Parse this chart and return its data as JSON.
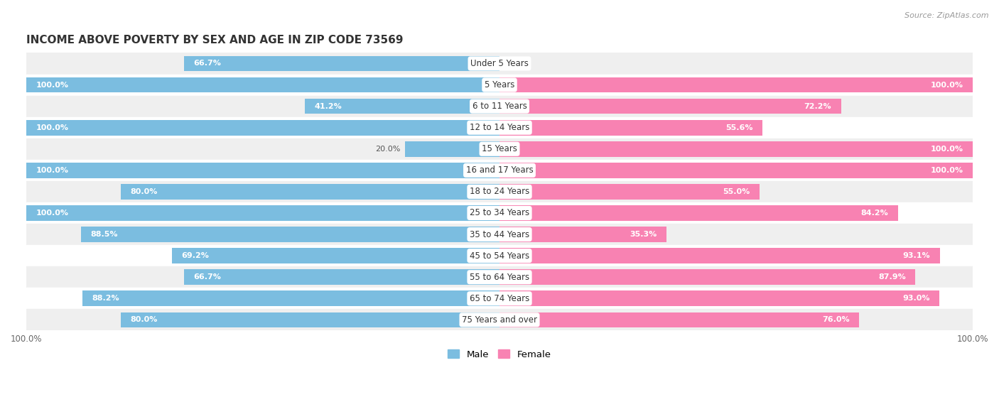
{
  "title": "INCOME ABOVE POVERTY BY SEX AND AGE IN ZIP CODE 73569",
  "source": "Source: ZipAtlas.com",
  "categories": [
    "Under 5 Years",
    "5 Years",
    "6 to 11 Years",
    "12 to 14 Years",
    "15 Years",
    "16 and 17 Years",
    "18 to 24 Years",
    "25 to 34 Years",
    "35 to 44 Years",
    "45 to 54 Years",
    "55 to 64 Years",
    "65 to 74 Years",
    "75 Years and over"
  ],
  "male_values": [
    66.7,
    100.0,
    41.2,
    100.0,
    20.0,
    100.0,
    80.0,
    100.0,
    88.5,
    69.2,
    66.7,
    88.2,
    80.0
  ],
  "female_values": [
    0.0,
    100.0,
    72.2,
    55.6,
    100.0,
    100.0,
    55.0,
    84.2,
    35.3,
    93.1,
    87.9,
    93.0,
    76.0
  ],
  "male_color": "#7bbde0",
  "female_color": "#f882b2",
  "male_label": "Male",
  "female_label": "Female",
  "background_row_light": "#efefef",
  "background_row_white": "#ffffff",
  "bar_height": 0.72,
  "title_fontsize": 11,
  "label_fontsize": 8.5,
  "value_fontsize": 8.0,
  "source_fontsize": 8.0,
  "legend_fontsize": 9.5,
  "fig_width": 14.06,
  "fig_height": 5.59
}
